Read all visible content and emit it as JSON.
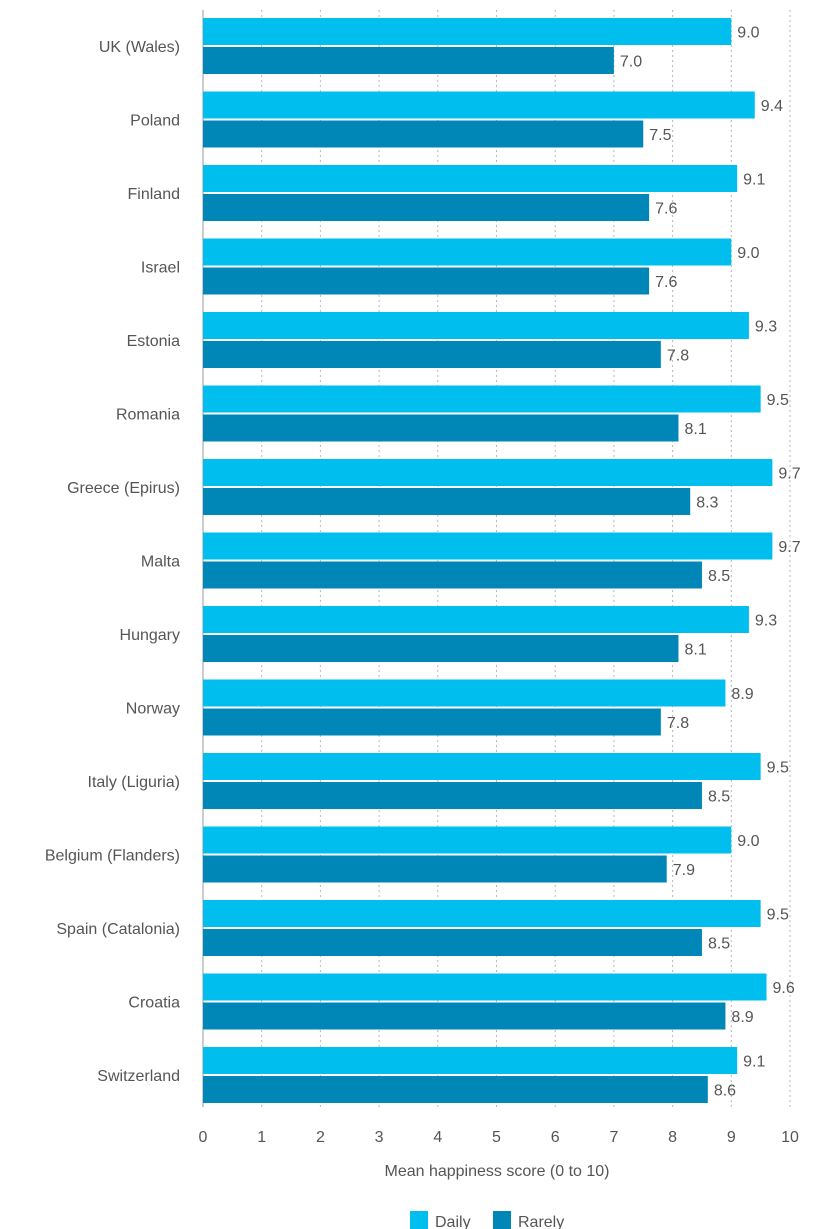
{
  "chart_data": {
    "type": "bar",
    "orientation": "horizontal",
    "title": "",
    "xlabel": "Mean happiness score (0 to 10)",
    "ylabel": "",
    "xlim": [
      0,
      10
    ],
    "xticks": [
      "0",
      "1",
      "2",
      "3",
      "4",
      "5",
      "6",
      "7",
      "8",
      "9",
      "10"
    ],
    "grid": true,
    "legend_position": "bottom-center",
    "categories": [
      "UK (Wales)",
      "Poland",
      "Finland",
      "Israel",
      "Estonia",
      "Romania",
      "Greece (Epirus)",
      "Malta",
      "Hungary",
      "Norway",
      "Italy (Liguria)",
      "Belgium (Flanders)",
      "Spain (Catalonia)",
      "Croatia",
      "Switzerland"
    ],
    "series": [
      {
        "name": "Daily",
        "color": "#00bfef",
        "values": [
          9.0,
          9.4,
          9.1,
          9.0,
          9.3,
          9.5,
          9.7,
          9.7,
          9.3,
          8.9,
          9.5,
          9.0,
          9.5,
          9.6,
          9.1
        ],
        "labels": [
          "9.0",
          "9.4",
          "9.1",
          "9.0",
          "9.3",
          "9.5",
          "9.7",
          "9.7",
          "9.3",
          "8.9",
          "9.5",
          "9.0",
          "9.5",
          "9.6",
          "9.1"
        ]
      },
      {
        "name": "Rarely",
        "color": "#0087b8",
        "values": [
          7.0,
          7.5,
          7.6,
          7.6,
          7.8,
          8.1,
          8.3,
          8.5,
          8.1,
          7.8,
          8.5,
          7.9,
          8.5,
          8.9,
          8.6
        ],
        "labels": [
          "7.0",
          "7.5",
          "7.6",
          "7.6",
          "7.8",
          "8.1",
          "8.3",
          "8.5",
          "8.1",
          "7.8",
          "8.5",
          "7.9",
          "8.5",
          "8.9",
          "8.6"
        ]
      }
    ]
  }
}
